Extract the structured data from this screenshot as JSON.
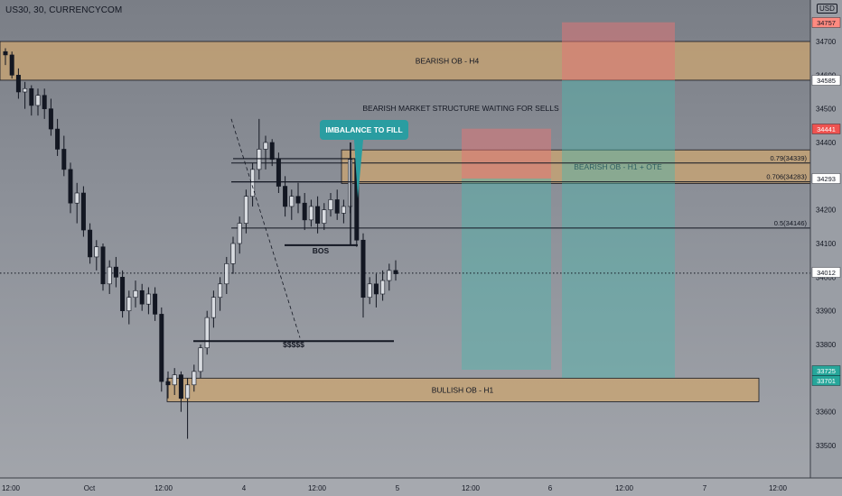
{
  "header": {
    "symbol": "US30, 30, CURRENCYCOM",
    "currency": "USD"
  },
  "chart_data": {
    "type": "candlestick",
    "y_axis": {
      "ticks": [
        34700,
        34600,
        34500,
        34400,
        34300,
        34200,
        34100,
        34000,
        33900,
        33800,
        33700,
        33600,
        33500
      ],
      "ylim": [
        33420,
        34800
      ]
    },
    "x_axis": {
      "ticks": [
        "12:00",
        "Oct",
        "12:00",
        "4",
        "12:00",
        "5",
        "12:00",
        "6",
        "12:00",
        "7",
        "12:00"
      ]
    },
    "price_labels": [
      {
        "value": "34757",
        "color": "#ff8a80"
      },
      {
        "value": "34585",
        "color": "#ffffff"
      },
      {
        "value": "34441",
        "color": "#ef5350"
      },
      {
        "value": "34293",
        "color": "#ffffff"
      },
      {
        "value": "34012",
        "color": "#ffffff"
      },
      {
        "value": "33725",
        "color": "#26a69a"
      },
      {
        "value": "33701",
        "color": "#26a69a"
      }
    ],
    "current_price": 34012,
    "zones": [
      {
        "label": "BEARISH OB - H4",
        "from": 34585,
        "to": 34700,
        "color": "#c9a472"
      },
      {
        "label": "BEARISH OB - H1 + OTE",
        "from": 34278,
        "to": 34378,
        "color": "#c9a472"
      },
      {
        "label": "BULLISH OB - H1",
        "from": 33630,
        "to": 33700,
        "color": "#c9a472"
      }
    ],
    "fib_levels": [
      {
        "label": "0.79(34339)",
        "value": 34339
      },
      {
        "label": "0.706(34283)",
        "value": 34283
      },
      {
        "label": "0.5(34146)",
        "value": 34146
      }
    ],
    "annotations": {
      "structure_note": "BEARISH MARKET STRUCTURE WAITING FOR SELLS",
      "imbalance_callout": "IMBALANCE TO FILL",
      "bos": "BOS",
      "liquidity": "$$$$$"
    },
    "positions": [
      {
        "entry": 34293,
        "stop": 34441,
        "target": 33725
      },
      {
        "entry": 34585,
        "stop": 34757,
        "target": 33701
      }
    ],
    "candles": [
      [
        34670,
        34680,
        34630,
        34660
      ],
      [
        34660,
        34670,
        34590,
        34600
      ],
      [
        34600,
        34620,
        34530,
        34550
      ],
      [
        34550,
        34580,
        34500,
        34560
      ],
      [
        34560,
        34570,
        34480,
        34510
      ],
      [
        34510,
        34560,
        34480,
        34540
      ],
      [
        34540,
        34560,
        34470,
        34500
      ],
      [
        34500,
        34530,
        34420,
        34440
      ],
      [
        34440,
        34470,
        34360,
        34380
      ],
      [
        34380,
        34420,
        34300,
        34320
      ],
      [
        34320,
        34340,
        34190,
        34220
      ],
      [
        34220,
        34280,
        34160,
        34250
      ],
      [
        34250,
        34270,
        34120,
        34140
      ],
      [
        34140,
        34160,
        34040,
        34060
      ],
      [
        34060,
        34110,
        34020,
        34090
      ],
      [
        34090,
        34100,
        33960,
        33980
      ],
      [
        33980,
        34050,
        33950,
        34030
      ],
      [
        34030,
        34060,
        33970,
        34000
      ],
      [
        34000,
        34020,
        33880,
        33900
      ],
      [
        33900,
        33960,
        33860,
        33940
      ],
      [
        33940,
        33990,
        33910,
        33960
      ],
      [
        33960,
        33980,
        33900,
        33920
      ],
      [
        33920,
        33970,
        33890,
        33950
      ],
      [
        33950,
        33970,
        33870,
        33890
      ],
      [
        33890,
        33910,
        33660,
        33690
      ],
      [
        33690,
        33720,
        33640,
        33680
      ],
      [
        33680,
        33730,
        33650,
        33710
      ],
      [
        33710,
        33720,
        33600,
        33640
      ],
      [
        33640,
        33700,
        33520,
        33680
      ],
      [
        33680,
        33740,
        33660,
        33720
      ],
      [
        33720,
        33800,
        33700,
        33790
      ],
      [
        33790,
        33900,
        33770,
        33880
      ],
      [
        33880,
        33960,
        33850,
        33940
      ],
      [
        33940,
        34000,
        33900,
        33980
      ],
      [
        33980,
        34060,
        33950,
        34040
      ],
      [
        34040,
        34120,
        34010,
        34100
      ],
      [
        34100,
        34180,
        34070,
        34160
      ],
      [
        34160,
        34260,
        34130,
        34240
      ],
      [
        34240,
        34340,
        34210,
        34320
      ],
      [
        34320,
        34470,
        34290,
        34380
      ],
      [
        34380,
        34420,
        34320,
        34400
      ],
      [
        34400,
        34410,
        34330,
        34350
      ],
      [
        34350,
        34370,
        34250,
        34270
      ],
      [
        34270,
        34300,
        34180,
        34210
      ],
      [
        34210,
        34260,
        34170,
        34240
      ],
      [
        34240,
        34280,
        34190,
        34220
      ],
      [
        34220,
        34250,
        34140,
        34170
      ],
      [
        34170,
        34230,
        34150,
        34210
      ],
      [
        34210,
        34240,
        34130,
        34160
      ],
      [
        34160,
        34220,
        34140,
        34200
      ],
      [
        34200,
        34250,
        34180,
        34230
      ],
      [
        34230,
        34260,
        34170,
        34190
      ],
      [
        34190,
        34230,
        34160,
        34210
      ],
      [
        34210,
        34400,
        34190,
        34350
      ],
      [
        34350,
        34370,
        34090,
        34110
      ],
      [
        34110,
        34130,
        33880,
        33940
      ],
      [
        33940,
        34000,
        33920,
        33980
      ],
      [
        33980,
        34010,
        33910,
        33950
      ],
      [
        33950,
        34020,
        33930,
        33990
      ],
      [
        33990,
        34040,
        33960,
        34020
      ],
      [
        34020,
        34050,
        33990,
        34010
      ]
    ]
  }
}
